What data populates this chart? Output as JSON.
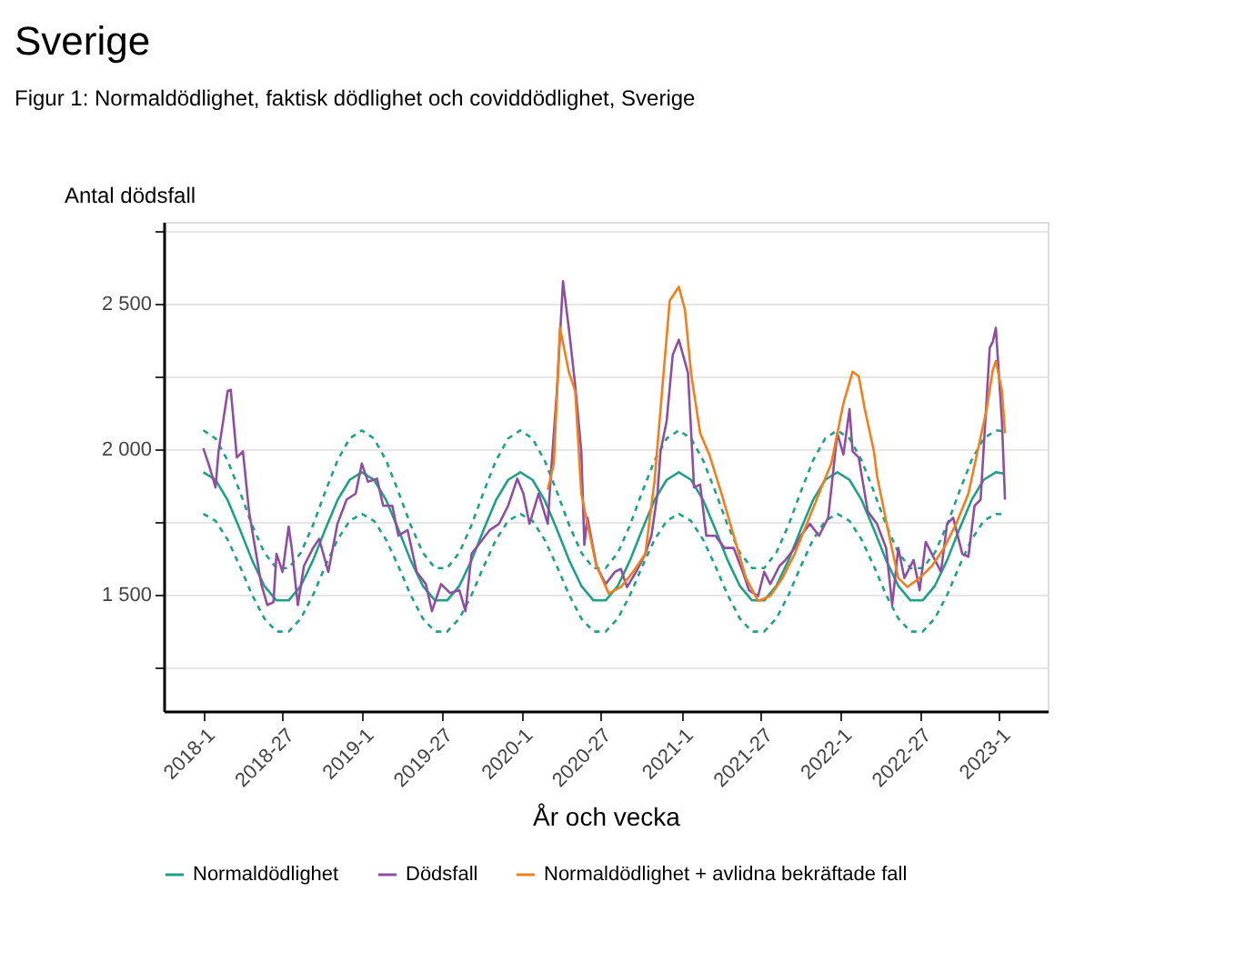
{
  "chart_data": {
    "type": "line",
    "title": "Sverige",
    "subtitle": "Figur 1: Normaldödlighet, faktisk dödlighet och coviddödlighet, Sverige",
    "xlabel": "År och vecka",
    "ylabel": "Antal dödsfall",
    "xlim": [
      "2017-10-02",
      "2023-04-24"
    ],
    "ylim": [
      1100,
      2780
    ],
    "xticks": [
      {
        "value": "2018-01-01",
        "label": "2018-1"
      },
      {
        "value": "2018-07-02",
        "label": "2018-27"
      },
      {
        "value": "2019-01-01",
        "label": "2019-1"
      },
      {
        "value": "2019-07-01",
        "label": "2019-27"
      },
      {
        "value": "2020-01-01",
        "label": "2020-1"
      },
      {
        "value": "2020-06-29",
        "label": "2020-27"
      },
      {
        "value": "2021-01-04",
        "label": "2021-1"
      },
      {
        "value": "2021-07-05",
        "label": "2021-27"
      },
      {
        "value": "2022-01-03",
        "label": "2022-1"
      },
      {
        "value": "2022-07-04",
        "label": "2022-27"
      },
      {
        "value": "2023-01-02",
        "label": "2023-1"
      }
    ],
    "yticks": [
      {
        "value": 1250,
        "label": null
      },
      {
        "value": 1500,
        "label": "1 500"
      },
      {
        "value": 1750,
        "label": null
      },
      {
        "value": 2000,
        "label": "2 000"
      },
      {
        "value": 2250,
        "label": null
      },
      {
        "value": 2500,
        "label": "2 500"
      },
      {
        "value": 2750,
        "label": null
      }
    ],
    "grid": "y",
    "legend": "bottom",
    "line_style": "solid",
    "marker": "none",
    "x": [
      "2018-01-01",
      "2018-01-29",
      "2018-02-26",
      "2018-03-26",
      "2018-04-23",
      "2018-05-21",
      "2018-06-18",
      "2018-07-16",
      "2018-08-13",
      "2018-09-10",
      "2018-10-08",
      "2018-11-05",
      "2018-12-03",
      "2018-12-31",
      "2019-01-28",
      "2019-02-25",
      "2019-03-25",
      "2019-04-22",
      "2019-05-20",
      "2019-06-17",
      "2019-07-15",
      "2019-08-12",
      "2019-09-09",
      "2019-10-07",
      "2019-11-04",
      "2019-12-02",
      "2019-12-30",
      "2020-01-27",
      "2020-02-24",
      "2020-03-23",
      "2020-04-20",
      "2020-05-18",
      "2020-06-15",
      "2020-07-13",
      "2020-08-10",
      "2020-09-07",
      "2020-10-05",
      "2020-11-02",
      "2020-11-30",
      "2020-12-28",
      "2021-01-25",
      "2021-02-22",
      "2021-03-22",
      "2021-04-19",
      "2021-05-17",
      "2021-06-14",
      "2021-07-12",
      "2021-08-09",
      "2021-09-06",
      "2021-10-04",
      "2021-11-01",
      "2021-11-29",
      "2021-12-27",
      "2022-01-24",
      "2022-02-21",
      "2022-03-21",
      "2022-04-18",
      "2022-05-16",
      "2022-06-13",
      "2022-07-11",
      "2022-08-08",
      "2022-09-05",
      "2022-10-03",
      "2022-10-31",
      "2022-11-28",
      "2022-12-26",
      "2023-01-16"
    ],
    "series": [
      {
        "color": "#1fa187",
        "line_style": "dashed",
        "values": [
          2064,
          2036,
          1960,
          1853,
          1739,
          1644,
          1591,
          1591,
          1644,
          1739,
          1853,
          1960,
          2036,
          2064,
          2036,
          1960,
          1853,
          1739,
          1644,
          1591,
          1591,
          1644,
          1739,
          1853,
          1960,
          2036,
          2064,
          2036,
          1960,
          1853,
          1739,
          1644,
          1591,
          1591,
          1644,
          1739,
          1853,
          1960,
          2036,
          2064,
          2036,
          1960,
          1853,
          1739,
          1644,
          1591,
          1591,
          1644,
          1739,
          1853,
          1960,
          2036,
          2064,
          2036,
          1960,
          1853,
          1739,
          1644,
          1591,
          1591,
          1644,
          1739,
          1853,
          1960,
          2036,
          2064,
          2060
        ]
      },
      {
        "color": "#1fa187",
        "line_style": "dashed",
        "values": [
          1777,
          1753,
          1688,
          1597,
          1499,
          1418,
          1373,
          1373,
          1418,
          1499,
          1597,
          1688,
          1753,
          1777,
          1753,
          1688,
          1597,
          1499,
          1418,
          1373,
          1373,
          1418,
          1499,
          1597,
          1688,
          1753,
          1777,
          1753,
          1688,
          1597,
          1499,
          1418,
          1373,
          1373,
          1418,
          1499,
          1597,
          1688,
          1753,
          1777,
          1753,
          1688,
          1597,
          1499,
          1418,
          1373,
          1373,
          1418,
          1499,
          1597,
          1688,
          1753,
          1777,
          1753,
          1688,
          1597,
          1499,
          1418,
          1373,
          1373,
          1418,
          1499,
          1597,
          1688,
          1753,
          1777,
          1775
        ]
      },
      {
        "name": "Normaldödlighet",
        "color": "#1fa187",
        "values": [
          1920,
          1894,
          1824,
          1724,
          1618,
          1530,
          1480,
          1480,
          1530,
          1618,
          1724,
          1824,
          1894,
          1920,
          1894,
          1824,
          1724,
          1618,
          1530,
          1480,
          1480,
          1530,
          1618,
          1724,
          1824,
          1894,
          1920,
          1894,
          1824,
          1724,
          1618,
          1530,
          1480,
          1480,
          1530,
          1618,
          1724,
          1824,
          1894,
          1920,
          1894,
          1824,
          1724,
          1618,
          1530,
          1480,
          1480,
          1530,
          1618,
          1724,
          1824,
          1894,
          1920,
          1894,
          1824,
          1724,
          1618,
          1530,
          1480,
          1480,
          1530,
          1618,
          1724,
          1824,
          1894,
          1920,
          1915
        ]
      },
      {
        "name": "Dödsfall",
        "color": "#8e4fa0",
        "x": [
          "2018-01-01",
          "2018-01-15",
          "2018-01-29",
          "2018-02-05",
          "2018-02-26",
          "2018-03-05",
          "2018-03-19",
          "2018-04-02",
          "2018-04-16",
          "2018-04-30",
          "2018-05-14",
          "2018-05-28",
          "2018-06-11",
          "2018-06-18",
          "2018-07-02",
          "2018-07-16",
          "2018-07-23",
          "2018-08-06",
          "2018-08-20",
          "2018-09-10",
          "2018-09-24",
          "2018-10-15",
          "2018-11-05",
          "2018-11-26",
          "2018-12-17",
          "2018-12-31",
          "2019-01-14",
          "2019-02-04",
          "2019-02-18",
          "2019-03-11",
          "2019-03-25",
          "2019-04-15",
          "2019-05-06",
          "2019-05-27",
          "2019-06-10",
          "2019-07-01",
          "2019-07-22",
          "2019-08-12",
          "2019-08-26",
          "2019-09-09",
          "2019-09-30",
          "2019-10-21",
          "2019-11-11",
          "2019-12-02",
          "2019-12-23",
          "2020-01-06",
          "2020-01-20",
          "2020-02-10",
          "2020-03-02",
          "2020-03-09",
          "2020-03-23",
          "2020-04-06",
          "2020-04-20",
          "2020-05-04",
          "2020-05-18",
          "2020-05-25",
          "2020-06-01",
          "2020-06-22",
          "2020-07-13",
          "2020-08-03",
          "2020-08-17",
          "2020-08-31",
          "2020-09-21",
          "2020-10-12",
          "2020-10-26",
          "2020-11-09",
          "2020-11-16",
          "2020-11-30",
          "2020-12-14",
          "2020-12-28",
          "2021-01-18",
          "2021-02-01",
          "2021-02-15",
          "2021-03-01",
          "2021-03-22",
          "2021-04-12",
          "2021-05-03",
          "2021-05-24",
          "2021-06-07",
          "2021-06-28",
          "2021-07-12",
          "2021-07-26",
          "2021-08-16",
          "2021-08-30",
          "2021-09-20",
          "2021-10-04",
          "2021-10-25",
          "2021-11-15",
          "2021-12-06",
          "2021-12-27",
          "2022-01-10",
          "2022-01-24",
          "2022-01-31",
          "2022-02-14",
          "2022-03-07",
          "2022-03-28",
          "2022-04-18",
          "2022-05-02",
          "2022-05-16",
          "2022-05-30",
          "2022-06-20",
          "2022-07-04",
          "2022-07-18",
          "2022-08-01",
          "2022-08-22",
          "2022-09-05",
          "2022-09-19",
          "2022-10-10",
          "2022-10-24",
          "2022-11-07",
          "2022-11-21",
          "2022-12-12",
          "2022-12-19",
          "2022-12-26",
          "2023-01-09",
          "2023-01-16"
        ],
        "values": [
          2002,
          1940,
          1868,
          1992,
          2199,
          2203,
          1971,
          1992,
          1785,
          1660,
          1536,
          1464,
          1474,
          1640,
          1578,
          1733,
          1660,
          1464,
          1598,
          1660,
          1691,
          1578,
          1743,
          1826,
          1847,
          1950,
          1888,
          1898,
          1805,
          1805,
          1702,
          1722,
          1578,
          1536,
          1443,
          1536,
          1505,
          1515,
          1443,
          1640,
          1681,
          1722,
          1743,
          1805,
          1898,
          1847,
          1743,
          1847,
          1743,
          1909,
          2199,
          2576,
          2406,
          2219,
          1992,
          1671,
          1764,
          1598,
          1536,
          1578,
          1588,
          1526,
          1578,
          1640,
          1702,
          1847,
          1992,
          2095,
          2323,
          2375,
          2261,
          1868,
          1878,
          1702,
          1702,
          1660,
          1660,
          1578,
          1515,
          1495,
          1578,
          1536,
          1598,
          1619,
          1660,
          1702,
          1743,
          1702,
          1764,
          2054,
          1981,
          2137,
          1992,
          1971,
          1785,
          1743,
          1660,
          1464,
          1660,
          1557,
          1619,
          1515,
          1681,
          1640,
          1578,
          1743,
          1764,
          1640,
          1630,
          1805,
          1826,
          2348,
          2368,
          2416,
          2095,
          1826
        ]
      },
      {
        "name": "Normaldödlighet + avlidna bekräftade fall",
        "color": "#f07f1e",
        "x": [
          "2020-03-02",
          "2020-03-16",
          "2020-03-30",
          "2020-04-20",
          "2020-05-04",
          "2020-05-18",
          "2020-06-01",
          "2020-06-22",
          "2020-07-20",
          "2020-08-17",
          "2020-09-14",
          "2020-10-12",
          "2020-11-02",
          "2020-11-23",
          "2020-12-07",
          "2020-12-28",
          "2021-01-11",
          "2021-01-25",
          "2021-02-15",
          "2021-03-08",
          "2021-04-05",
          "2021-05-03",
          "2021-05-31",
          "2021-06-28",
          "2021-07-26",
          "2021-08-23",
          "2021-09-20",
          "2021-10-18",
          "2021-11-15",
          "2021-12-13",
          "2022-01-10",
          "2022-01-31",
          "2022-02-14",
          "2022-02-28",
          "2022-03-21",
          "2022-03-28",
          "2022-04-25",
          "2022-05-16",
          "2022-06-06",
          "2022-07-04",
          "2022-08-01",
          "2022-08-29",
          "2022-09-26",
          "2022-10-24",
          "2022-11-14",
          "2022-12-05",
          "2022-12-19",
          "2022-12-26",
          "2023-01-09",
          "2023-01-16"
        ],
        "values": [
          1860,
          1950,
          2416,
          2261,
          2199,
          1847,
          1743,
          1598,
          1504,
          1526,
          1578,
          1640,
          1888,
          2261,
          2509,
          2557,
          2478,
          2261,
          2054,
          1981,
          1847,
          1702,
          1557,
          1478,
          1495,
          1557,
          1640,
          1743,
          1847,
          1950,
          2157,
          2265,
          2250,
          2137,
          1992,
          1909,
          1702,
          1557,
          1526,
          1557,
          1598,
          1660,
          1743,
          1847,
          1992,
          2137,
          2271,
          2302,
          2199,
          2054
        ]
      }
    ]
  }
}
